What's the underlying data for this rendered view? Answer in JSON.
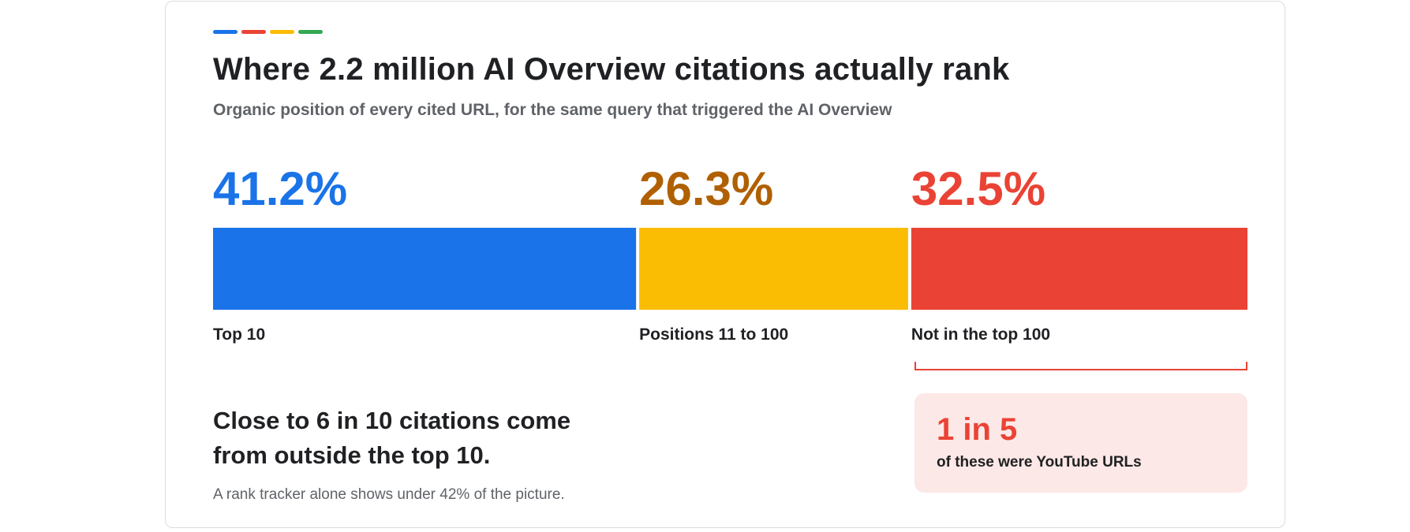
{
  "header": {
    "accent_colors": [
      "#1a73e8",
      "#ea4335",
      "#fbbc04",
      "#34a853"
    ],
    "title": "Where 2.2 million AI Overview citations actually rank",
    "subtitle": "Organic position of every cited URL, for the same query that triggered the AI Overview"
  },
  "chart_data": {
    "type": "bar",
    "orientation": "stacked-horizontal",
    "title": "Where 2.2 million AI Overview citations actually rank",
    "subtitle": "Organic position of every cited URL, for the same query that triggered the AI Overview",
    "categories": [
      "Top 10",
      "Positions 11 to 100",
      "Not in the top 100"
    ],
    "values": [
      41.2,
      26.3,
      32.5
    ],
    "value_labels": [
      "41.2%",
      "26.3%",
      "32.5%"
    ],
    "colors": [
      "#1a73e8",
      "#fbbc04",
      "#ea4335"
    ],
    "label_colors": [
      "#1a73e8",
      "#b06000",
      "#ea4335"
    ],
    "unit": "%",
    "grid": false,
    "legend": "none"
  },
  "takeaway": {
    "headline": "Close to 6 in 10 citations come from outside the top 10.",
    "note": "A rank tracker alone shows under 42% of the picture."
  },
  "callout": {
    "big": "1 in 5",
    "small": "of these were YouTube URLs"
  }
}
